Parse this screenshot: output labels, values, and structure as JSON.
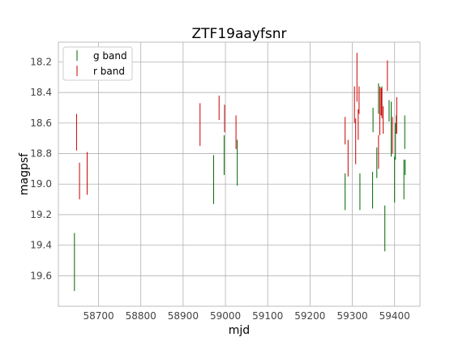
{
  "chart_data": {
    "type": "scatter",
    "title": "ZTF19aayfsnr",
    "xlabel": "mjd",
    "ylabel": "magpsf",
    "xlim": [
      58605,
      59460
    ],
    "ylim": [
      19.8,
      18.07
    ],
    "y_inverted": true,
    "grid": true,
    "legend_position": "top-left",
    "xticks": [
      58700,
      58800,
      58900,
      59000,
      59100,
      59200,
      59300,
      59400
    ],
    "yticks": [
      18.2,
      18.4,
      18.6,
      18.8,
      19.0,
      19.2,
      19.4,
      19.6
    ],
    "series": [
      {
        "name": "g band",
        "color": "#006400",
        "points": [
          {
            "x": 58643,
            "y": 19.51,
            "err": 0.19
          },
          {
            "x": 58972,
            "y": 18.97,
            "err": 0.16
          },
          {
            "x": 58997,
            "y": 18.81,
            "err": 0.13
          },
          {
            "x": 59028,
            "y": 18.86,
            "err": 0.15
          },
          {
            "x": 59283,
            "y": 19.05,
            "err": 0.12
          },
          {
            "x": 59318,
            "y": 19.05,
            "err": 0.12
          },
          {
            "x": 59348,
            "y": 19.04,
            "err": 0.12
          },
          {
            "x": 59349,
            "y": 18.58,
            "err": 0.08
          },
          {
            "x": 59358,
            "y": 18.86,
            "err": 0.1
          },
          {
            "x": 59362,
            "y": 18.44,
            "err": 0.1
          },
          {
            "x": 59370,
            "y": 18.46,
            "err": 0.1
          },
          {
            "x": 59377,
            "y": 19.29,
            "err": 0.15
          },
          {
            "x": 59387,
            "y": 18.52,
            "err": 0.07
          },
          {
            "x": 59392,
            "y": 18.64,
            "err": 0.18
          },
          {
            "x": 59400,
            "y": 18.97,
            "err": 0.15
          },
          {
            "x": 59402,
            "y": 18.72,
            "err": 0.12
          },
          {
            "x": 59404,
            "y": 18.61,
            "err": 0.06
          },
          {
            "x": 59422,
            "y": 18.97,
            "err": 0.13
          },
          {
            "x": 59424,
            "y": 18.66,
            "err": 0.11
          },
          {
            "x": 59425,
            "y": 18.89,
            "err": 0.05
          }
        ]
      },
      {
        "name": "r band",
        "color": "#cc0000",
        "points": [
          {
            "x": 58648,
            "y": 18.66,
            "err": 0.12
          },
          {
            "x": 58655,
            "y": 18.98,
            "err": 0.12
          },
          {
            "x": 58673,
            "y": 18.93,
            "err": 0.14
          },
          {
            "x": 58940,
            "y": 18.61,
            "err": 0.14
          },
          {
            "x": 58985,
            "y": 18.5,
            "err": 0.08
          },
          {
            "x": 58998,
            "y": 18.57,
            "err": 0.09
          },
          {
            "x": 59025,
            "y": 18.66,
            "err": 0.11
          },
          {
            "x": 59283,
            "y": 18.65,
            "err": 0.09
          },
          {
            "x": 59290,
            "y": 18.83,
            "err": 0.12
          },
          {
            "x": 59305,
            "y": 18.48,
            "err": 0.12
          },
          {
            "x": 59308,
            "y": 18.72,
            "err": 0.15
          },
          {
            "x": 59311,
            "y": 18.3,
            "err": 0.16
          },
          {
            "x": 59314,
            "y": 18.61,
            "err": 0.1
          },
          {
            "x": 59316,
            "y": 18.45,
            "err": 0.09
          },
          {
            "x": 59362,
            "y": 18.79,
            "err": 0.11
          },
          {
            "x": 59365,
            "y": 18.52,
            "err": 0.16
          },
          {
            "x": 59368,
            "y": 18.46,
            "err": 0.09
          },
          {
            "x": 59370,
            "y": 18.47,
            "err": 0.1
          },
          {
            "x": 59373,
            "y": 18.58,
            "err": 0.09
          },
          {
            "x": 59383,
            "y": 18.29,
            "err": 0.1
          },
          {
            "x": 59395,
            "y": 18.68,
            "err": 0.12
          },
          {
            "x": 59405,
            "y": 18.55,
            "err": 0.12
          }
        ]
      }
    ]
  }
}
